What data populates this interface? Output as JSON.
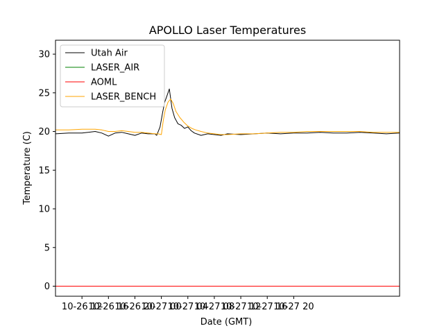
{
  "chart_data": {
    "type": "line",
    "title": "APOLLO Laser Temperatures",
    "xlabel": "Date (GMT)",
    "ylabel": "Temperature (C)",
    "xlim": [
      8,
      60
    ],
    "ylim": [
      -1.3,
      31.8
    ],
    "x_units": "hours since 10-26 00:00 GMT",
    "xticks": [
      {
        "x": 12,
        "label": "10-26 12"
      },
      {
        "x": 16,
        "label": "10-26 16"
      },
      {
        "x": 20,
        "label": "10-26 20"
      },
      {
        "x": 24,
        "label": "10-27 00"
      },
      {
        "x": 28,
        "label": "10-27 04"
      },
      {
        "x": 32,
        "label": "10-27 08"
      },
      {
        "x": 36,
        "label": "10-27 12"
      },
      {
        "x": 40,
        "label": "10-27 16"
      },
      {
        "x": 44,
        "label": "10-27 20"
      }
    ],
    "yticks": [
      0,
      5,
      10,
      15,
      20,
      25,
      30
    ],
    "legend_position": "top-left",
    "grid": false,
    "series": [
      {
        "name": "Utah Air",
        "color": "#000000",
        "x": [
          8,
          10,
          12,
          14,
          15,
          16,
          17,
          18,
          19,
          20,
          21,
          22,
          23,
          23.3,
          23.8,
          24.2,
          24.5,
          24.8,
          25.2,
          25.6,
          26,
          26.5,
          27,
          27.5,
          28,
          28.5,
          29,
          30,
          31,
          32,
          33,
          34,
          36,
          38,
          40,
          42,
          44,
          46,
          48,
          50,
          52,
          54,
          56,
          58,
          60
        ],
        "y": [
          19.7,
          19.8,
          19.8,
          20.0,
          19.8,
          19.4,
          19.8,
          19.9,
          19.7,
          19.5,
          19.8,
          19.7,
          19.7,
          19.5,
          20.6,
          22.5,
          23.8,
          24.5,
          25.5,
          23.0,
          21.8,
          21.0,
          20.8,
          20.4,
          20.6,
          20.1,
          19.8,
          19.5,
          19.7,
          19.6,
          19.5,
          19.7,
          19.6,
          19.7,
          19.8,
          19.7,
          19.8,
          19.8,
          19.9,
          19.8,
          19.8,
          19.9,
          19.8,
          19.7,
          19.8
        ]
      },
      {
        "name": "LASER_AIR",
        "color": "#008000",
        "x": [
          8,
          60
        ],
        "y": [
          0,
          0
        ]
      },
      {
        "name": "AOML",
        "color": "#ff0000",
        "x": [
          8,
          60
        ],
        "y": [
          0,
          0
        ]
      },
      {
        "name": "LASER_BENCH",
        "color": "#ffa500",
        "x": [
          8,
          10,
          12,
          14,
          15,
          16,
          17,
          18,
          19,
          20,
          21,
          22,
          23,
          23.5,
          24,
          24.3,
          24.6,
          25,
          25.4,
          25.8,
          26.2,
          26.8,
          27.4,
          28,
          28.6,
          29.2,
          30,
          31,
          32,
          33,
          34,
          36,
          38,
          40,
          42,
          44,
          46,
          48,
          50,
          52,
          54,
          56,
          58,
          60
        ],
        "y": [
          20.2,
          20.2,
          20.3,
          20.3,
          20.2,
          20.0,
          20.0,
          20.1,
          20.0,
          19.9,
          19.9,
          19.8,
          19.7,
          19.7,
          19.6,
          21.5,
          22.8,
          23.8,
          24.2,
          23.6,
          22.6,
          21.8,
          21.2,
          20.7,
          20.4,
          20.2,
          20.0,
          19.8,
          19.7,
          19.6,
          19.6,
          19.7,
          19.7,
          19.8,
          19.9,
          19.9,
          20.0,
          20.0,
          20.0,
          20.0,
          20.0,
          19.9,
          19.9,
          19.9
        ]
      }
    ]
  }
}
